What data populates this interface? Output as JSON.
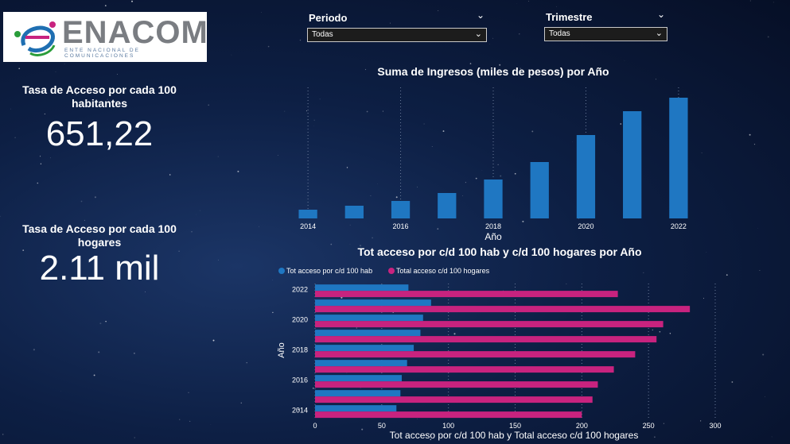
{
  "logo": {
    "word": "ENACOM",
    "subtitle": "ENTE NACIONAL DE COMUNICACIONES"
  },
  "kpis": [
    {
      "title": "Tasa de Acceso por cada 100 habitantes",
      "value": "651,22"
    },
    {
      "title": "Tasa de Acceso por cada 100 hogares",
      "value": "2.11 mil"
    }
  ],
  "slicers": [
    {
      "label": "Periodo",
      "selected": "Todas"
    },
    {
      "label": "Trimestre",
      "selected": "Todas"
    }
  ],
  "colors": {
    "blue": "#1f77c2",
    "pink": "#c8237f",
    "text": "#ffffff"
  },
  "chart_data": [
    {
      "type": "bar",
      "title": "Suma de Ingresos (miles de pesos) por Año",
      "xlabel": "Año",
      "ylabel": "",
      "categories": [
        "2014",
        "2015",
        "2016",
        "2017",
        "2018",
        "2019",
        "2020",
        "2021",
        "2022"
      ],
      "x_tick_labels": [
        "2014",
        "2016",
        "2018",
        "2020",
        "2022"
      ],
      "values": [
        11,
        16,
        22,
        32,
        49,
        71,
        105,
        135,
        152
      ],
      "ylim": [
        0,
        160
      ],
      "grid": false,
      "value_axis_shown": false
    },
    {
      "type": "bar",
      "orientation": "horizontal",
      "title": "Tot acceso por c/d 100 hab y c/d 100 hogares por Año",
      "xlabel": "Tot acceso por c/d 100 hab y Total acceso c/d 100 hogares",
      "ylabel": "Año",
      "categories": [
        "2022",
        "2021",
        "2020",
        "2019",
        "2018",
        "2017",
        "2016",
        "2015",
        "2014"
      ],
      "y_tick_labels": [
        "2022",
        "2020",
        "2018",
        "2016",
        "2014"
      ],
      "series": [
        {
          "name": "Tot acceso por c/d 100 hab",
          "values": [
            70,
            87,
            81,
            79,
            74,
            69,
            65,
            64,
            61
          ]
        },
        {
          "name": "Total acceso c/d 100 hogares",
          "values": [
            227,
            281,
            261,
            256,
            240,
            224,
            212,
            208,
            200
          ]
        }
      ],
      "xlim": [
        0,
        300
      ],
      "x_ticks": [
        "0",
        "50",
        "100",
        "150",
        "200",
        "250",
        "300"
      ],
      "grid": true,
      "legend": "top-left"
    }
  ]
}
